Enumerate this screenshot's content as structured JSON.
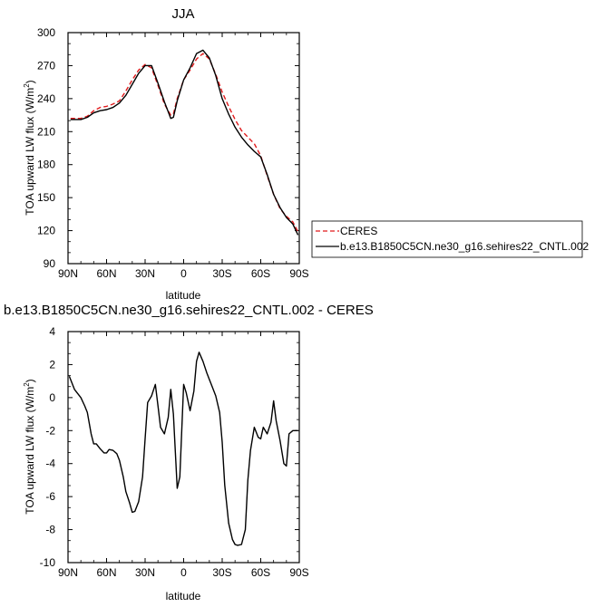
{
  "chart_data": [
    {
      "type": "line",
      "title": "JJA",
      "xlabel": "latitude",
      "ylabel": "TOA upward LW flux (W/m",
      "ylabel_sup": "2",
      "ylabel_end": ")",
      "x_ticks": [
        "90N",
        "60N",
        "30N",
        "0",
        "30S",
        "60S",
        "90S"
      ],
      "y_ticks": [
        "90",
        "120",
        "150",
        "180",
        "210",
        "240",
        "270",
        "300"
      ],
      "xlim": [
        90,
        -90
      ],
      "ylim": [
        90,
        300
      ],
      "legend_position": "right",
      "series": [
        {
          "name": "CERES",
          "color": "#e0191b",
          "dash": "dashed",
          "x": [
            88,
            80,
            75,
            70,
            65,
            60,
            55,
            50,
            45,
            40,
            35,
            30,
            25,
            20,
            15,
            10,
            8,
            5,
            0,
            -5,
            -10,
            -15,
            -20,
            -25,
            -30,
            -35,
            -40,
            -45,
            -50,
            -55,
            -60,
            -65,
            -70,
            -75,
            -80,
            -85,
            -89
          ],
          "y": [
            222,
            222,
            224,
            229,
            232,
            233,
            235,
            238,
            247,
            257,
            266,
            271,
            268,
            252,
            235,
            225,
            226,
            240,
            257,
            266,
            276,
            281,
            276,
            262,
            246,
            233,
            221,
            211,
            205,
            199,
            188,
            170,
            153,
            140,
            133,
            128,
            119
          ]
        },
        {
          "name": "b.e13.B1850C5CN.ne30_g16.sehires22_CNTL.002",
          "color": "#000000",
          "dash": "solid",
          "x": [
            88,
            80,
            75,
            70,
            65,
            60,
            55,
            50,
            45,
            40,
            35,
            30,
            25,
            20,
            15,
            10,
            8,
            5,
            0,
            -5,
            -10,
            -15,
            -20,
            -25,
            -30,
            -35,
            -40,
            -45,
            -50,
            -55,
            -60,
            -65,
            -70,
            -75,
            -80,
            -85,
            -89
          ],
          "y": [
            221,
            221,
            223,
            227,
            229,
            230,
            232,
            236,
            243,
            253,
            263,
            270,
            270,
            254,
            237,
            222,
            223,
            238,
            257,
            268,
            281,
            284,
            277,
            261,
            240,
            226,
            214,
            205,
            198,
            192,
            187,
            171,
            153,
            141,
            132,
            126,
            116
          ]
        }
      ]
    },
    {
      "type": "line",
      "title": "b.e13.B1850C5CN.ne30_g16.sehires22_CNTL.002 - CERES",
      "xlabel": "latitude",
      "ylabel": "TOA upward LW flux (W/m",
      "ylabel_sup": "2",
      "ylabel_end": ")",
      "x_ticks": [
        "90N",
        "60N",
        "30N",
        "0",
        "30S",
        "60S",
        "90S"
      ],
      "y_ticks": [
        "-10",
        "-8",
        "-6",
        "-4",
        "-2",
        "0",
        "2",
        "4"
      ],
      "xlim": [
        90,
        -90
      ],
      "ylim": [
        -10,
        4
      ],
      "series": [
        {
          "color": "#000000",
          "dash": "solid",
          "x": [
            89,
            85,
            80,
            77,
            75,
            72,
            70,
            68,
            65,
            62,
            60,
            58,
            55,
            52,
            50,
            47,
            45,
            42,
            40,
            38,
            35,
            32,
            30,
            28,
            25,
            22,
            20,
            18,
            15,
            12,
            10,
            8,
            5,
            3,
            0,
            -2,
            -5,
            -8,
            -10,
            -12,
            -15,
            -18,
            -20,
            -22,
            -25,
            -28,
            -30,
            -32,
            -35,
            -38,
            -40,
            -42,
            -45,
            -48,
            -50,
            -52,
            -55,
            -58,
            -60,
            -62,
            -65,
            -68,
            -70,
            -72,
            -75,
            -78,
            -80,
            -82,
            -85,
            -87,
            -89
          ],
          "y": [
            1.3,
            0.5,
            0.0,
            -0.5,
            -0.9,
            -2.2,
            -2.8,
            -2.8,
            -3.1,
            -3.35,
            -3.35,
            -3.15,
            -3.2,
            -3.4,
            -3.8,
            -4.8,
            -5.7,
            -6.4,
            -6.95,
            -6.9,
            -6.3,
            -4.8,
            -2.5,
            -0.3,
            0.1,
            0.8,
            -0.5,
            -1.8,
            -2.2,
            -1.2,
            0.5,
            -1.0,
            -5.5,
            -4.8,
            0.8,
            0.3,
            -0.8,
            0.4,
            2.2,
            2.75,
            2.2,
            1.5,
            1.1,
            0.7,
            0.1,
            -0.9,
            -2.7,
            -5.3,
            -7.6,
            -8.6,
            -8.9,
            -8.95,
            -8.9,
            -8.0,
            -5.0,
            -3.2,
            -1.8,
            -2.4,
            -2.5,
            -1.8,
            -2.2,
            -1.5,
            -0.2,
            -1.4,
            -2.6,
            -4.0,
            -4.15,
            -2.2,
            -2.0,
            -2.0,
            -2.0
          ]
        }
      ]
    }
  ]
}
